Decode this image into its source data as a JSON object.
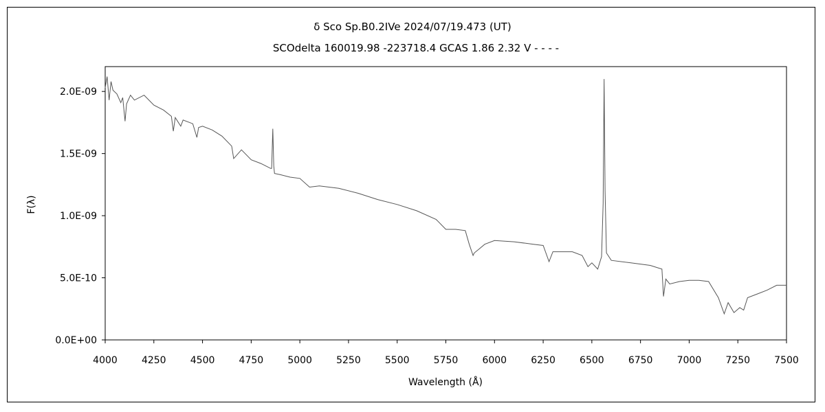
{
  "chart_data": {
    "type": "line",
    "title": "δ Sco   Sp.B0.2IVe   2024/07/19.473 (UT)",
    "subtitle": "SCOdelta 160019.98 -223718.4 GCAS 1.86 2.32 V - - - -",
    "xlabel": "Wavelength (Å)",
    "ylabel": "F(λ)",
    "xlim": [
      4000,
      7500
    ],
    "ylim": [
      0,
      2.2e-09
    ],
    "x_ticks": [
      4000,
      4250,
      4500,
      4750,
      5000,
      5250,
      5500,
      5750,
      6000,
      6250,
      6500,
      6750,
      7000,
      7250,
      7500
    ],
    "x_tick_labels": [
      "4000",
      "4250",
      "4500",
      "4750",
      "5000",
      "5250",
      "5500",
      "5750",
      "6000",
      "6250",
      "6500",
      "6750",
      "7000",
      "7250",
      "7500"
    ],
    "y_ticks": [
      0,
      5e-10,
      1e-09,
      1.5e-09,
      2e-09
    ],
    "y_tick_labels": [
      "0.0E+00",
      "5.0E-10",
      "1.0E-09",
      "1.5E-09",
      "2.0E-09"
    ],
    "grid": false,
    "legend": "none",
    "line_color": "#555555",
    "series": [
      {
        "x": [
          4000,
          4010,
          4020,
          4030,
          4040,
          4060,
          4080,
          4090,
          4102,
          4110,
          4130,
          4150,
          4200,
          4250,
          4300,
          4340,
          4350,
          4360,
          4388,
          4400,
          4450,
          4471,
          4480,
          4500,
          4550,
          4600,
          4650,
          4660,
          4700,
          4750,
          4800,
          4850,
          4855,
          4861,
          4866,
          4870,
          4900,
          4950,
          5000,
          5050,
          5100,
          5200,
          5300,
          5400,
          5500,
          5600,
          5700,
          5750,
          5800,
          5850,
          5870,
          5890,
          5896,
          5920,
          5950,
          6000,
          6100,
          6200,
          6250,
          6280,
          6300,
          6400,
          6450,
          6480,
          6500,
          6530,
          6550,
          6558,
          6563,
          6568,
          6575,
          6600,
          6700,
          6800,
          6860,
          6868,
          6880,
          6900,
          6950,
          7000,
          7050,
          7100,
          7150,
          7180,
          7200,
          7230,
          7260,
          7280,
          7300,
          7350,
          7400,
          7450,
          7500
        ],
        "y": [
          2.03e-09,
          2.12e-09,
          1.93e-09,
          2.08e-09,
          2.01e-09,
          1.98e-09,
          1.91e-09,
          1.95e-09,
          1.76e-09,
          1.9e-09,
          1.97e-09,
          1.93e-09,
          1.97e-09,
          1.89e-09,
          1.85e-09,
          1.8e-09,
          1.68e-09,
          1.79e-09,
          1.72e-09,
          1.77e-09,
          1.74e-09,
          1.63e-09,
          1.71e-09,
          1.72e-09,
          1.69e-09,
          1.64e-09,
          1.56e-09,
          1.46e-09,
          1.53e-09,
          1.45e-09,
          1.42e-09,
          1.38e-09,
          1.38e-09,
          1.7e-09,
          1.4e-09,
          1.34e-09,
          1.33e-09,
          1.31e-09,
          1.3e-09,
          1.23e-09,
          1.24e-09,
          1.22e-09,
          1.18e-09,
          1.13e-09,
          1.09e-09,
          1.04e-09,
          9.7e-10,
          8.9e-10,
          8.9e-10,
          8.8e-10,
          7.7e-10,
          6.8e-10,
          7e-10,
          7.3e-10,
          7.7e-10,
          8e-10,
          7.9e-10,
          7.7e-10,
          7.6e-10,
          6.3e-10,
          7.1e-10,
          7.1e-10,
          6.8e-10,
          5.9e-10,
          6.2e-10,
          5.7e-10,
          6.7e-10,
          1.1e-09,
          2.1e-09,
          1.2e-09,
          7e-10,
          6.4e-10,
          6.2e-10,
          6e-10,
          5.7e-10,
          3.5e-10,
          4.9e-10,
          4.5e-10,
          4.7e-10,
          4.8e-10,
          4.8e-10,
          4.7e-10,
          3.4e-10,
          2.1e-10,
          3e-10,
          2.2e-10,
          2.6e-10,
          2.4e-10,
          3.4e-10,
          3.7e-10,
          4e-10,
          4.4e-10,
          4.4e-10
        ]
      }
    ]
  }
}
